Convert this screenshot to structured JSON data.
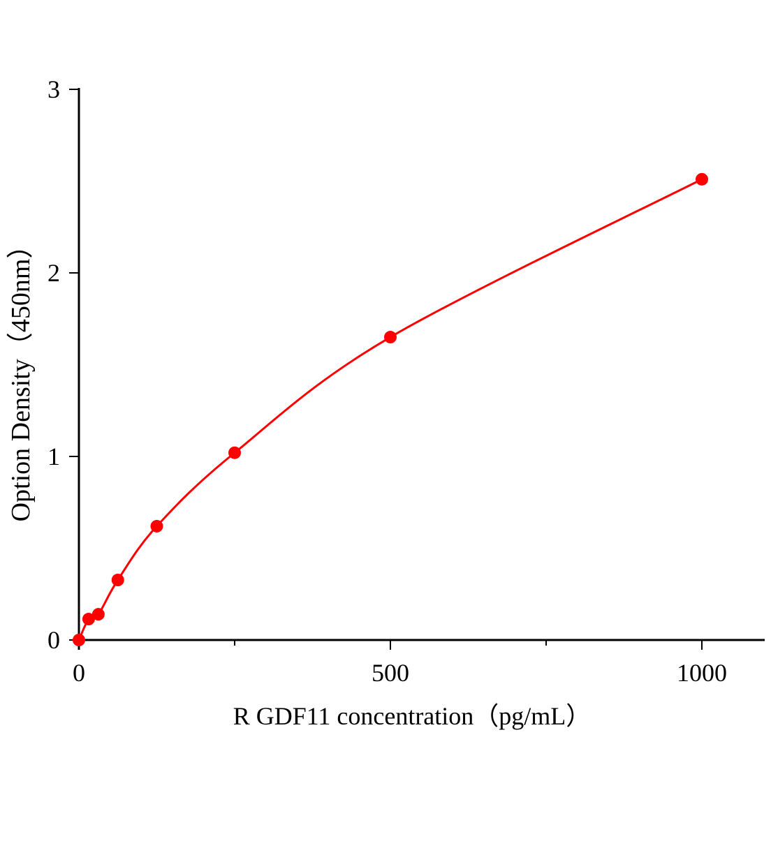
{
  "chart_data": {
    "type": "line",
    "title": "",
    "xlabel": "R GDF11  concentration（pg/mL）",
    "ylabel": "Option Density（450nm）",
    "xlim": [
      0,
      1100
    ],
    "ylim": [
      0,
      3
    ],
    "x_ticks": [
      0,
      500,
      1000
    ],
    "x_minor_ticks": [
      250,
      750
    ],
    "y_ticks": [
      0,
      1,
      2,
      3
    ],
    "grid": false,
    "color": "#ff0000",
    "series": [
      {
        "x": [
          0,
          15.6,
          31.25,
          62.5,
          125,
          250,
          500,
          1000
        ],
        "y": [
          0,
          0.114,
          0.14,
          0.327,
          0.62,
          1.02,
          1.65,
          2.51
        ]
      }
    ]
  }
}
